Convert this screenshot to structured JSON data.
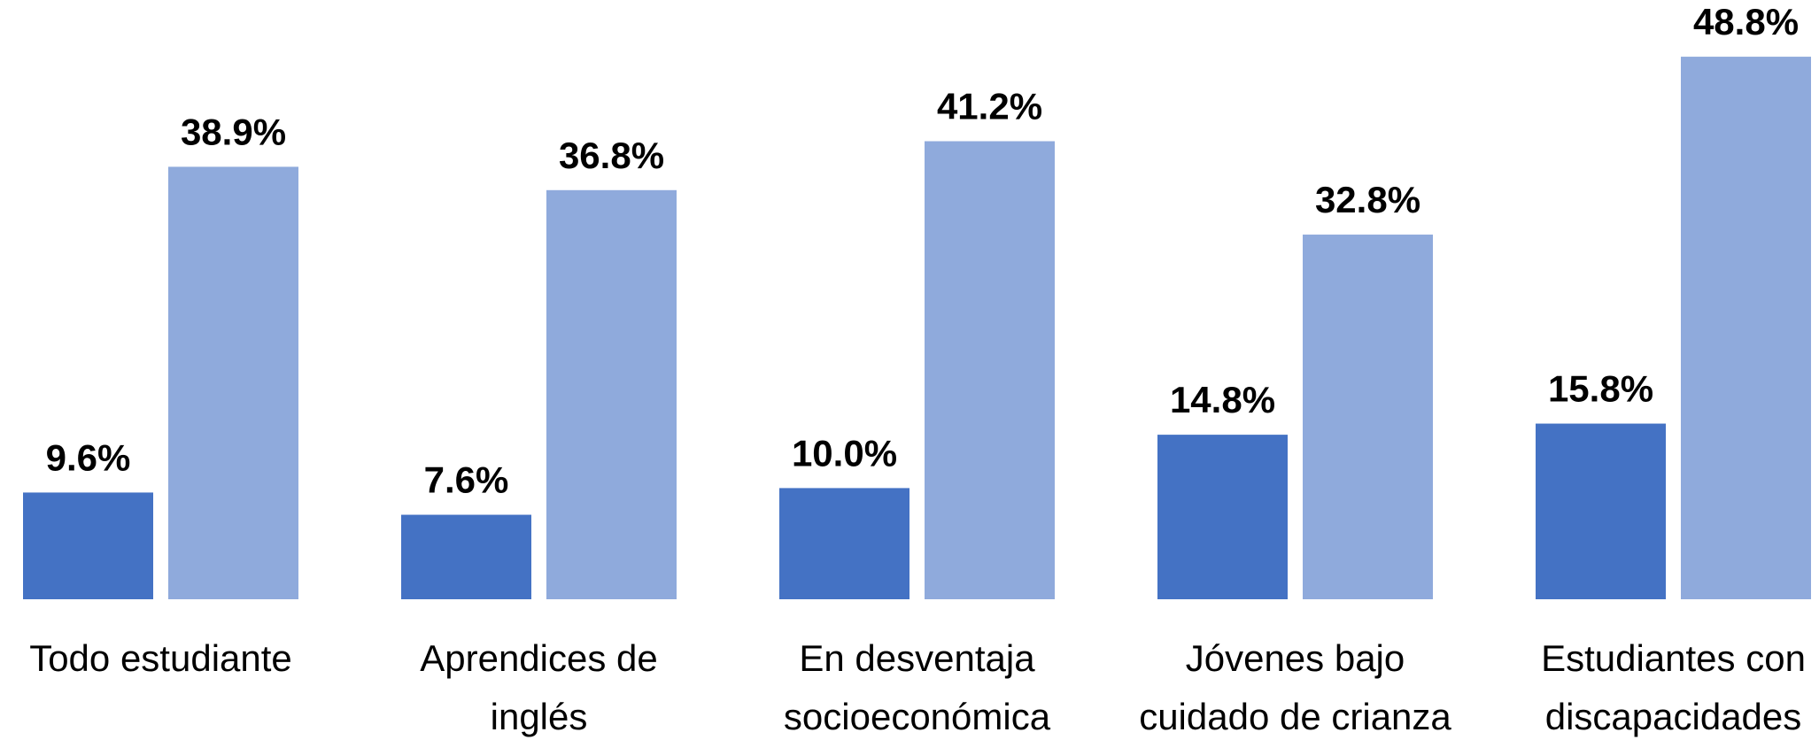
{
  "chart_data": {
    "type": "bar",
    "categories": [
      [
        "Todo estudiante"
      ],
      [
        "Aprendices de",
        "inglés"
      ],
      [
        "En desventaja",
        "socioeconómica"
      ],
      [
        "Jóvenes bajo",
        "cuidado de crianza"
      ],
      [
        "Estudiantes con",
        "discapacidades"
      ]
    ],
    "series": [
      {
        "color": "#4472c4",
        "values": [
          9.6,
          7.6,
          10.0,
          14.8,
          15.8
        ],
        "value_labels": [
          "9.6%",
          "7.6%",
          "10.0%",
          "14.8%",
          "15.8%"
        ]
      },
      {
        "color": "#8faadc",
        "values": [
          38.9,
          36.8,
          41.2,
          32.8,
          48.8
        ],
        "value_labels": [
          "38.9%",
          "36.8%",
          "41.2%",
          "32.8%",
          "48.8%"
        ]
      }
    ]
  }
}
